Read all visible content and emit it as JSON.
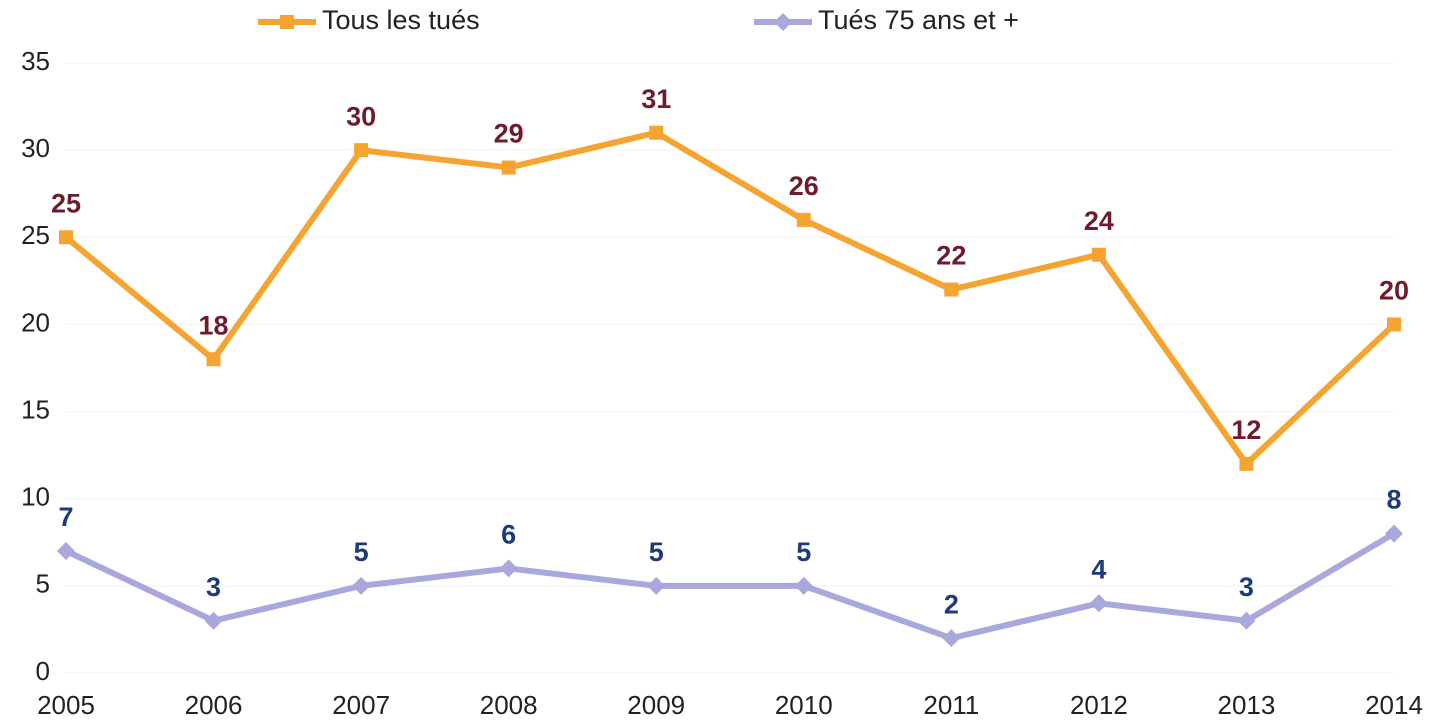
{
  "chart_data": {
    "type": "line",
    "categories": [
      "2005",
      "2006",
      "2007",
      "2008",
      "2009",
      "2010",
      "2011",
      "2012",
      "2013",
      "2014"
    ],
    "series": [
      {
        "name": "Tous les tués",
        "color": "#f5a431",
        "label_color": "#6e1c2c",
        "marker": "square",
        "values": [
          25,
          18,
          30,
          29,
          31,
          26,
          22,
          24,
          12,
          20
        ]
      },
      {
        "name": "Tués 75 ans et +",
        "color": "#a8a8dc",
        "label_color": "#1f3a78",
        "marker": "diamond",
        "values": [
          7,
          3,
          5,
          6,
          5,
          5,
          2,
          4,
          3,
          8
        ]
      }
    ],
    "ylim": [
      0,
      35
    ],
    "yticks": [
      0,
      5,
      10,
      15,
      20,
      25,
      30,
      35
    ],
    "grid": true,
    "legend": "top"
  }
}
